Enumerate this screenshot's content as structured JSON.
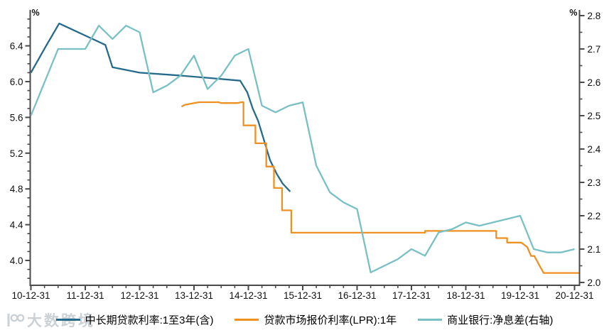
{
  "chart_data": {
    "type": "line",
    "title": "",
    "left_axis": {
      "unit": "%",
      "ticks": [
        6.4,
        6.0,
        5.6,
        5.2,
        4.8,
        4.4,
        4.0
      ],
      "tick_labels": [
        "6.4",
        "6.0",
        "5.6",
        "5.2",
        "4.8",
        "4.4",
        "4.0"
      ],
      "minor_step": 0.1,
      "range_top": 6.75,
      "range_bottom": 3.72
    },
    "right_axis": {
      "unit": "%",
      "ticks": [
        2.8,
        2.7,
        2.6,
        2.5,
        2.4,
        2.3,
        2.2,
        2.1,
        2.0
      ],
      "tick_labels": [
        "2.8",
        "2.7",
        "2.6",
        "2.5",
        "2.4",
        "2.3",
        "2.2",
        "2.1",
        "2.0"
      ],
      "minor_step": 0.05,
      "range_top": 2.8,
      "range_bottom": 2.0
    },
    "x_axis": {
      "labels": [
        "10-12-31",
        "11-12-31",
        "12-12-31",
        "13-12-31",
        "14-12-31",
        "15-12-31",
        "16-12-31",
        "17-12-31",
        "18-12-31",
        "19-12-31",
        "20-12-31"
      ],
      "minor_per_year": 4
    },
    "series": [
      {
        "id": "mlt-loan-rate",
        "name": "中长期贷款利率:1至3年(含)",
        "axis": "left",
        "color": "#266a8c",
        "points": [
          [
            0.0,
            6.1
          ],
          [
            0.28,
            6.4
          ],
          [
            0.52,
            6.65
          ],
          [
            1.37,
            6.41
          ],
          [
            1.5,
            6.16
          ],
          [
            2.0,
            6.1
          ],
          [
            2.7,
            6.07
          ],
          [
            3.3,
            6.04
          ],
          [
            3.85,
            6.01
          ],
          [
            3.98,
            5.88
          ],
          [
            4.08,
            5.7
          ],
          [
            4.18,
            5.56
          ],
          [
            4.28,
            5.36
          ],
          [
            4.4,
            5.12
          ],
          [
            4.52,
            4.97
          ],
          [
            4.63,
            4.86
          ],
          [
            4.77,
            4.77
          ]
        ]
      },
      {
        "id": "lpr-1y",
        "name": "贷款市场报价利率(LPR):1年",
        "axis": "left",
        "color": "#ee9122",
        "points": [
          [
            2.77,
            5.72
          ],
          [
            2.83,
            5.74
          ],
          [
            3.09,
            5.77
          ],
          [
            3.45,
            5.77
          ],
          [
            3.5,
            5.76
          ],
          [
            3.8,
            5.76
          ],
          [
            3.87,
            5.77
          ],
          [
            3.91,
            5.77
          ],
          [
            3.91,
            5.51
          ],
          [
            4.13,
            5.51
          ],
          [
            4.13,
            5.31
          ],
          [
            4.33,
            5.31
          ],
          [
            4.33,
            5.05
          ],
          [
            4.47,
            5.05
          ],
          [
            4.47,
            4.81
          ],
          [
            4.62,
            4.81
          ],
          [
            4.62,
            4.56
          ],
          [
            4.79,
            4.56
          ],
          [
            4.79,
            4.31
          ],
          [
            7.25,
            4.31
          ],
          [
            7.25,
            4.33
          ],
          [
            8.56,
            4.33
          ],
          [
            8.56,
            4.25
          ],
          [
            8.76,
            4.25
          ],
          [
            8.76,
            4.2
          ],
          [
            9.02,
            4.2
          ],
          [
            9.13,
            4.15
          ],
          [
            9.2,
            4.05
          ],
          [
            9.26,
            4.05
          ],
          [
            9.43,
            3.86
          ],
          [
            10.08,
            3.86
          ]
        ]
      },
      {
        "id": "bank-nim",
        "name": "商业银行:净息差(右轴)",
        "axis": "right",
        "color": "#78c0c4",
        "start_frac": 0,
        "step_frac": 0.25,
        "values": [
          2.5,
          2.6,
          2.7,
          2.7,
          2.7,
          2.77,
          2.73,
          2.77,
          2.75,
          2.57,
          2.59,
          2.62,
          2.68,
          2.58,
          2.62,
          2.68,
          2.7,
          2.53,
          2.51,
          2.53,
          2.54,
          2.35,
          2.27,
          2.24,
          2.22,
          2.03,
          2.05,
          2.07,
          2.1,
          2.08,
          2.15,
          2.16,
          2.18,
          2.17,
          2.18,
          2.19,
          2.2,
          2.1,
          2.09,
          2.09,
          2.1
        ]
      }
    ]
  },
  "legend": [
    {
      "label": "中长期贷款利率:1至3年(含)",
      "color": "#266a8c"
    },
    {
      "label": "贷款市场报价利率(LPR):1年",
      "color": "#ee9122"
    },
    {
      "label": "商业银行:净息差(右轴)",
      "color": "#78c0c4"
    }
  ],
  "watermark": {
    "text": "大数跨境"
  }
}
